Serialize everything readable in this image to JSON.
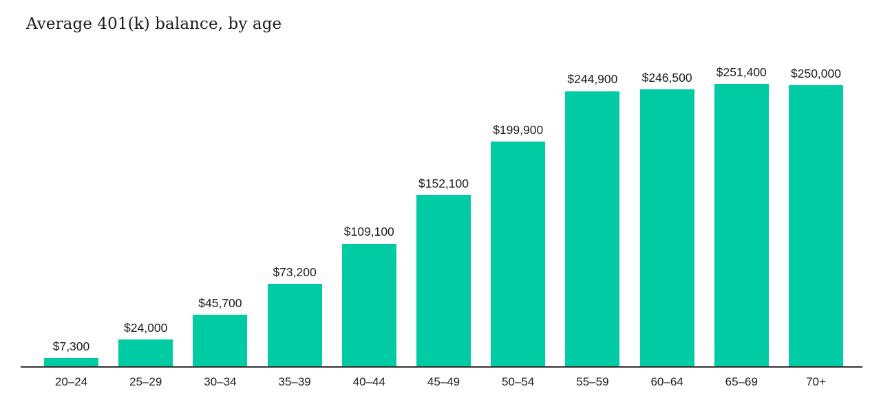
{
  "title": "Average 401(k) balance, by age",
  "chart_data": {
    "type": "bar",
    "title": "Average 401(k) balance, by age",
    "categories": [
      "20–24",
      "25–29",
      "30–34",
      "35–39",
      "40–44",
      "45–49",
      "50–54",
      "55–59",
      "60–64",
      "65–69",
      "70+"
    ],
    "values": [
      7300,
      24000,
      45700,
      73200,
      109100,
      152100,
      199900,
      244900,
      246500,
      251400,
      250000
    ],
    "value_labels": [
      "$7,300",
      "$24,000",
      "$45,700",
      "$73,200",
      "$109,100",
      "$152,100",
      "$199,900",
      "$244,900",
      "$246,500",
      "$251,400",
      "$250,000"
    ],
    "xlabel": "",
    "ylabel": "",
    "ylim": [
      0,
      260000
    ],
    "grid": "off",
    "legend": "none",
    "y_axis_visible": false,
    "bar_color": "#00cba3",
    "axis_line_color": "#333333",
    "label_color": "#1d1d1d",
    "title_color": "#1a1a1a",
    "background_color": "#ffffff"
  }
}
